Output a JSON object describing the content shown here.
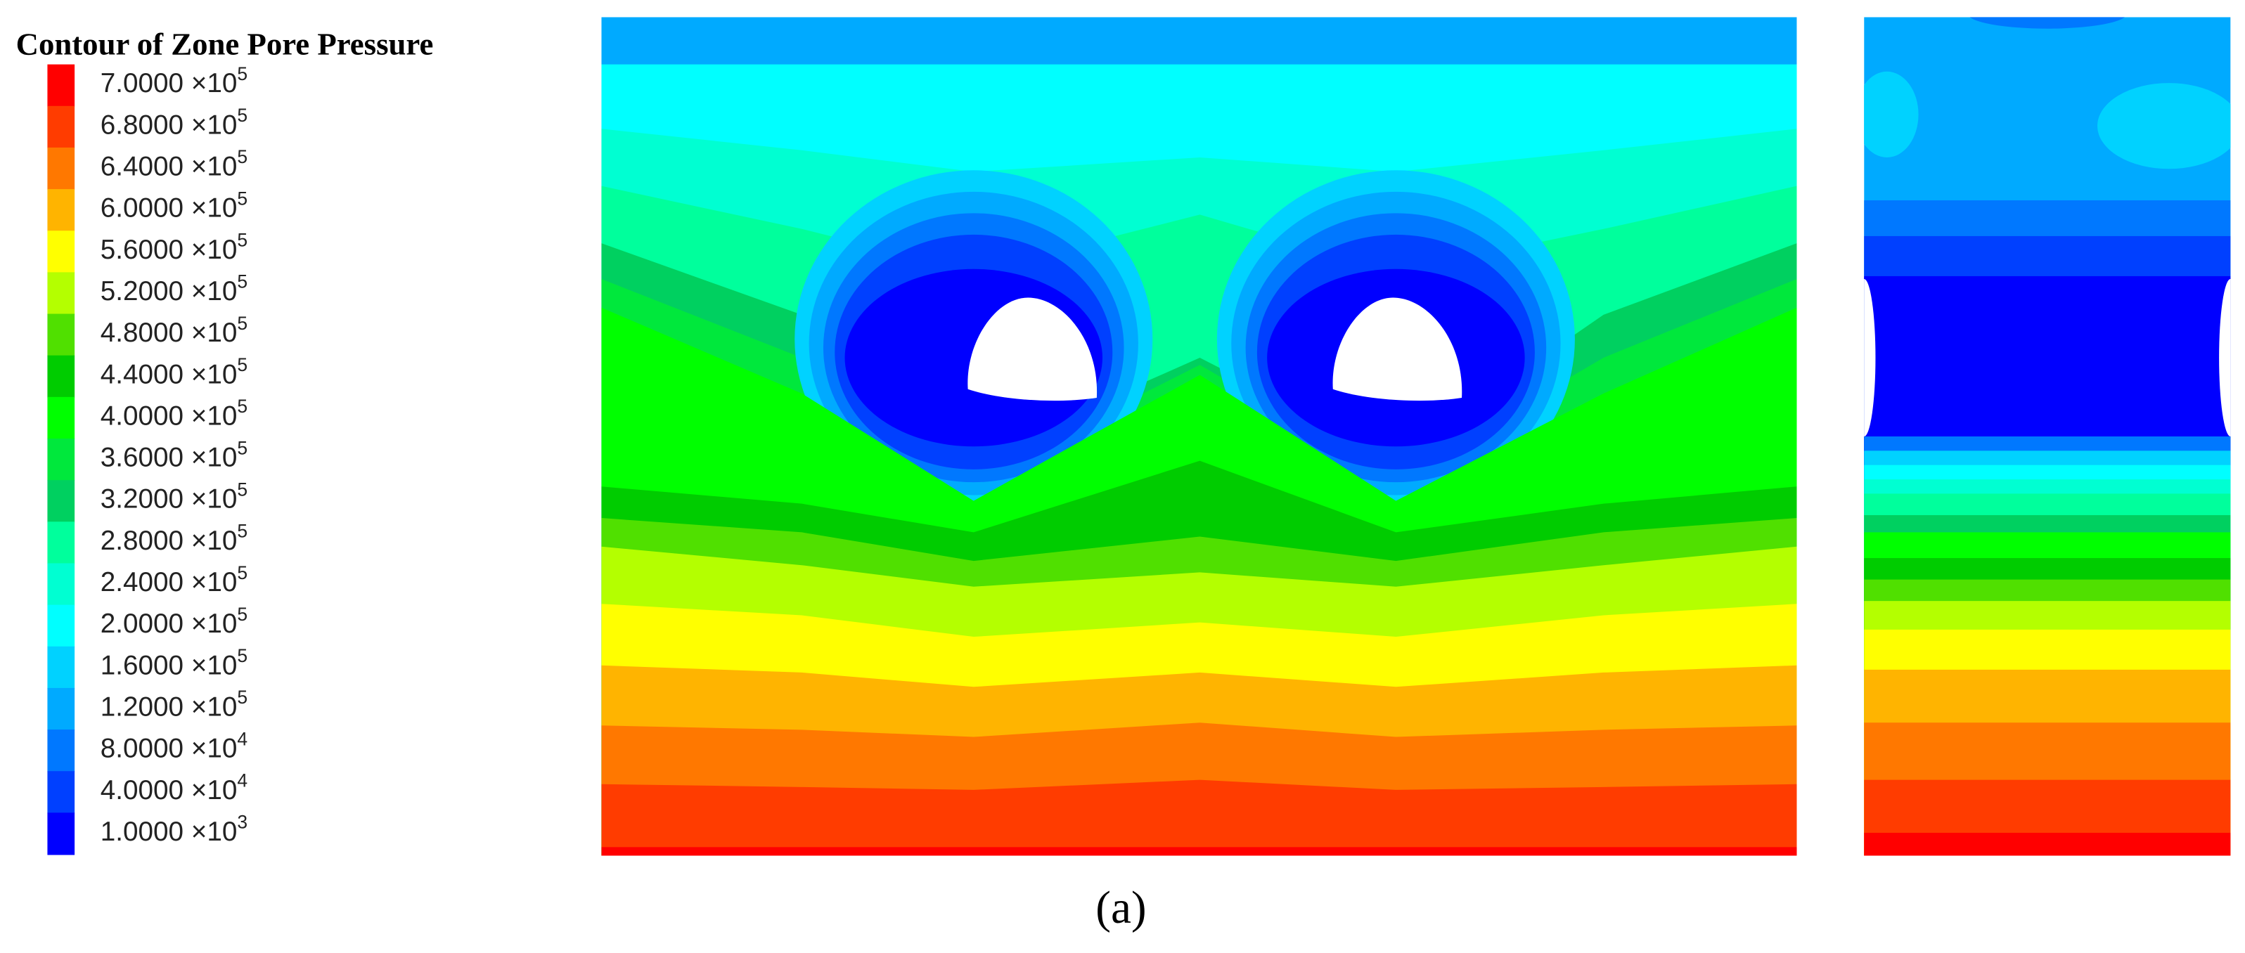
{
  "legend": {
    "title": "Contour of Zone Pore Pressure",
    "entries": [
      {
        "mantissa": "7.0000 ×10",
        "exponent": "5",
        "color": "#ff0000"
      },
      {
        "mantissa": "6.8000 ×10",
        "exponent": "5",
        "color": "#ff3c00"
      },
      {
        "mantissa": "6.4000 ×10",
        "exponent": "5",
        "color": "#ff7800"
      },
      {
        "mantissa": "6.0000 ×10",
        "exponent": "5",
        "color": "#ffb400"
      },
      {
        "mantissa": "5.6000 ×10",
        "exponent": "5",
        "color": "#ffff00"
      },
      {
        "mantissa": "5.2000 ×10",
        "exponent": "5",
        "color": "#b4ff00"
      },
      {
        "mantissa": "4.8000 ×10",
        "exponent": "5",
        "color": "#50e000"
      },
      {
        "mantissa": "4.4000 ×10",
        "exponent": "5",
        "color": "#00cc00"
      },
      {
        "mantissa": "4.0000 ×10",
        "exponent": "5",
        "color": "#00ff00"
      },
      {
        "mantissa": "3.6000 ×10",
        "exponent": "5",
        "color": "#00e83c"
      },
      {
        "mantissa": "3.2000 ×10",
        "exponent": "5",
        "color": "#00d060"
      },
      {
        "mantissa": "2.8000 ×10",
        "exponent": "5",
        "color": "#00ff9c"
      },
      {
        "mantissa": "2.4000 ×10",
        "exponent": "5",
        "color": "#00ffd2"
      },
      {
        "mantissa": "2.0000 ×10",
        "exponent": "5",
        "color": "#00ffff"
      },
      {
        "mantissa": "1.6000 ×10",
        "exponent": "5",
        "color": "#00d2ff"
      },
      {
        "mantissa": "1.2000 ×10",
        "exponent": "5",
        "color": "#00aaff"
      },
      {
        "mantissa": "8.0000 ×10",
        "exponent": "4",
        "color": "#0078ff"
      },
      {
        "mantissa": "4.0000 ×10",
        "exponent": "4",
        "color": "#0040ff"
      },
      {
        "mantissa": "1.0000 ×10",
        "exponent": "3",
        "color": "#0000ff"
      }
    ]
  },
  "caption": "(a)"
}
